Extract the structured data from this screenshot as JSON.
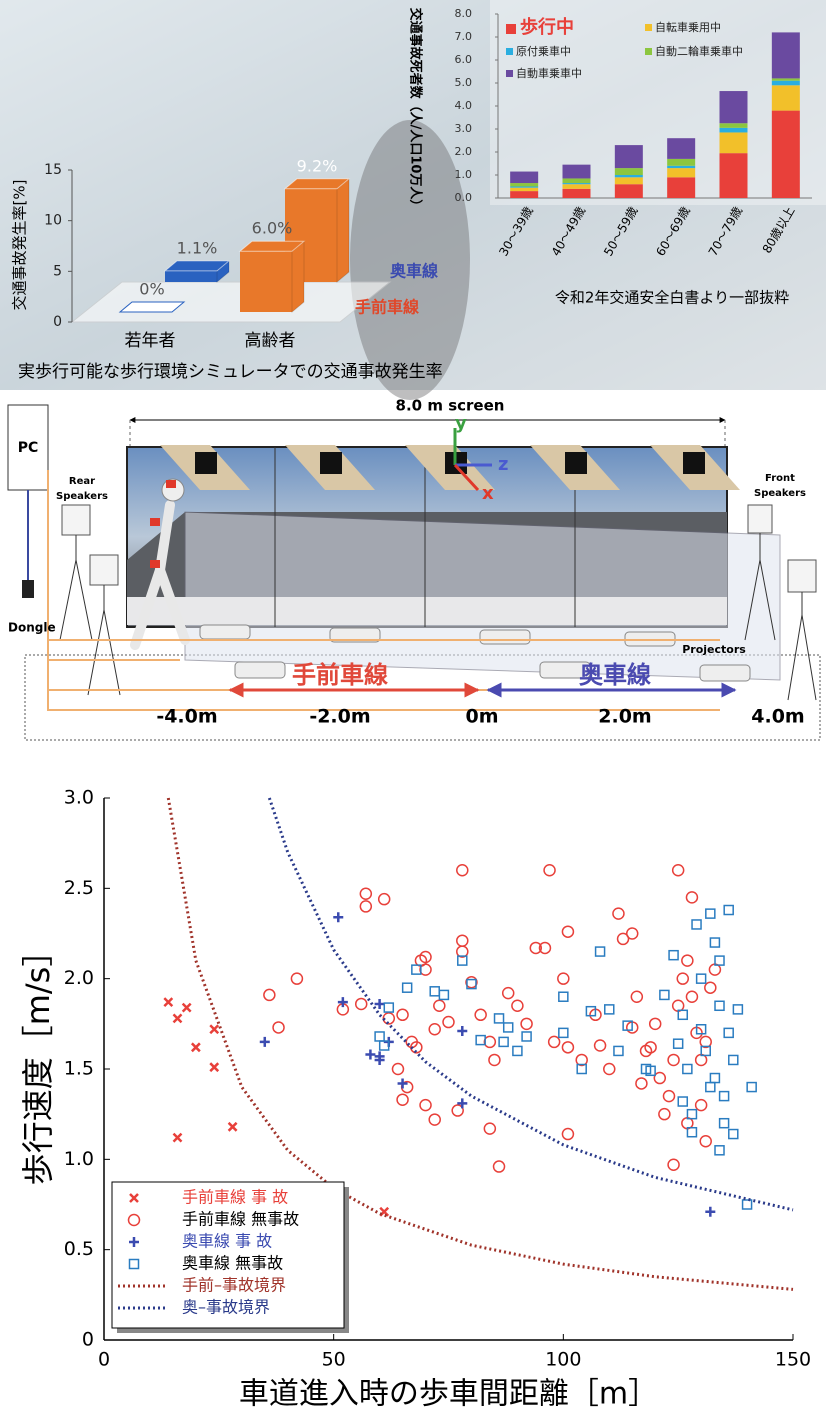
{
  "chart_data": [
    {
      "type": "bar",
      "title": "実歩行可能な歩行環境シミュレータでの交通事故発生率",
      "ylabel": "交通事故発生率[%]",
      "categories": [
        "若年者",
        "高齢者"
      ],
      "series": [
        {
          "name": "奥車線",
          "color": "#3b4bb0",
          "values": [
            1.1,
            9.2
          ],
          "value_labels": [
            "1.1%",
            "9.2%"
          ],
          "bar_colors": [
            "#2a62c0",
            "#e8782a"
          ]
        },
        {
          "name": "手前車線",
          "color": "#e0482a",
          "values": [
            0,
            6.0
          ],
          "value_labels": [
            "0%",
            "6.0%"
          ],
          "bar_colors": [
            "#2a62c0",
            "#e8782a"
          ]
        }
      ],
      "ylim": [
        0,
        15
      ],
      "yticks": [
        0,
        5,
        10,
        15
      ]
    },
    {
      "type": "bar",
      "stacked": true,
      "ylabel": "交通事故死者数（人/人口10万人）",
      "note": "令和2年交通安全白書より一部抜粋",
      "categories": [
        "30～39歳",
        "40～49歳",
        "50～59歳",
        "60～69歳",
        "70～79歳",
        "80歳以上"
      ],
      "series": [
        {
          "name": "歩行中",
          "color": "#e8403a",
          "values": [
            0.3,
            0.4,
            0.6,
            0.9,
            1.95,
            3.8
          ]
        },
        {
          "name": "自転車乗用中",
          "color": "#f2c02a",
          "values": [
            0.15,
            0.2,
            0.3,
            0.4,
            0.9,
            1.1
          ]
        },
        {
          "name": "原付乗車中",
          "color": "#2aaee0",
          "values": [
            0.05,
            0.05,
            0.1,
            0.1,
            0.2,
            0.2
          ]
        },
        {
          "name": "自動二輪車乗車中",
          "color": "#8cc63f",
          "values": [
            0.15,
            0.2,
            0.3,
            0.3,
            0.2,
            0.1
          ]
        },
        {
          "name": "自動車乗車中",
          "color": "#6a4aa0",
          "values": [
            0.5,
            0.6,
            1.0,
            0.9,
            1.4,
            2.0
          ]
        }
      ],
      "ylim": [
        0,
        8
      ],
      "yticks": [
        {
          "value": 0,
          "label": "0.0"
        },
        {
          "value": 1,
          "label": "1.0"
        },
        {
          "value": 2,
          "label": "2.0"
        },
        {
          "value": 3,
          "label": "3.0"
        },
        {
          "value": 4,
          "label": "4.0"
        },
        {
          "value": 5,
          "label": "5.0"
        },
        {
          "value": 6,
          "label": "6.0"
        },
        {
          "value": 7,
          "label": "7.0"
        },
        {
          "value": 8,
          "label": "8.0"
        }
      ]
    },
    {
      "type": "scatter",
      "xlabel": "車道進入時の歩車間距離［m］",
      "ylabel": "歩行速度［m/s］",
      "legend": "lower left",
      "xlim": [
        0,
        150
      ],
      "xticks": [
        0,
        50,
        100,
        150
      ],
      "ylim": [
        0,
        3
      ],
      "yticks": [
        0,
        0.5,
        {
          "value": 1,
          "label": "1.0"
        },
        1.5,
        {
          "value": 2,
          "label": "2.0"
        },
        2.5,
        {
          "value": 3,
          "label": "3.0"
        }
      ],
      "series": [
        {
          "name": "手前車線 事 故",
          "color": "#e8403a",
          "marker": "x",
          "x": [
            14,
            16,
            18,
            16,
            20,
            24,
            24,
            28,
            61
          ],
          "values": [
            1.87,
            1.78,
            1.84,
            1.12,
            1.62,
            1.72,
            1.51,
            1.18,
            0.71
          ]
        },
        {
          "name": "手前車線 無事故",
          "color": "#e8403a",
          "marker": "o",
          "x": [
            57,
            57,
            61,
            42,
            36,
            38,
            52,
            56,
            62,
            65,
            64,
            66,
            65,
            67,
            69,
            70,
            70,
            68,
            72,
            73,
            75,
            70,
            72,
            77,
            78,
            78,
            78,
            80,
            82,
            84,
            85,
            88,
            90,
            92,
            84,
            86,
            94,
            96,
            97,
            98,
            100,
            101,
            101,
            101,
            104,
            107,
            108,
            110,
            112,
            113,
            115,
            116,
            118,
            120,
            121,
            122,
            123,
            124,
            125,
            125,
            126,
            127,
            127,
            128,
            128,
            129,
            130,
            130,
            131,
            131,
            132,
            133,
            124,
            119,
            117,
            115
          ],
          "values": [
            2.47,
            2.4,
            2.44,
            2.0,
            1.91,
            1.73,
            1.83,
            1.86,
            1.78,
            1.8,
            1.5,
            1.4,
            1.33,
            1.65,
            2.1,
            2.12,
            2.05,
            1.62,
            1.72,
            1.85,
            1.76,
            1.3,
            1.22,
            1.27,
            2.21,
            2.15,
            2.6,
            1.98,
            1.8,
            1.65,
            1.55,
            1.92,
            1.85,
            1.75,
            1.17,
            0.96,
            2.17,
            2.17,
            2.6,
            1.65,
            2.0,
            1.62,
            2.26,
            1.14,
            1.55,
            1.8,
            1.63,
            1.5,
            2.36,
            2.22,
            2.25,
            1.9,
            1.6,
            1.75,
            1.45,
            1.25,
            1.35,
            1.55,
            1.85,
            2.6,
            2.0,
            2.1,
            1.2,
            2.45,
            1.9,
            1.7,
            1.55,
            1.3,
            1.1,
            1.65,
            1.95,
            2.05,
            0.97,
            1.62,
            1.42,
            1.73
          ]
        },
        {
          "name": "奥車線 事 故",
          "color": "#3b4bb0",
          "marker": "+",
          "x": [
            51,
            52,
            35,
            58,
            60,
            60,
            62,
            65,
            60,
            78,
            78,
            132
          ],
          "values": [
            2.34,
            1.87,
            1.65,
            1.58,
            1.57,
            1.86,
            1.65,
            1.42,
            1.55,
            1.71,
            1.31,
            0.71
          ]
        },
        {
          "name": "奥車線 無事故",
          "color": "#2a7cc0",
          "marker": "s",
          "x": [
            60,
            61,
            62,
            66,
            68,
            72,
            74,
            78,
            80,
            82,
            86,
            87,
            88,
            90,
            92,
            100,
            100,
            104,
            106,
            108,
            110,
            112,
            114,
            118,
            119,
            122,
            124,
            125,
            126,
            127,
            128,
            129,
            130,
            130,
            131,
            132,
            133,
            133,
            134,
            134,
            135,
            135,
            136,
            136,
            137,
            137,
            138,
            141,
            140,
            134,
            132,
            128,
            126
          ],
          "values": [
            1.68,
            1.63,
            1.84,
            1.95,
            2.05,
            1.93,
            1.91,
            2.1,
            1.97,
            1.66,
            1.78,
            1.65,
            1.73,
            1.6,
            1.68,
            1.7,
            1.9,
            1.5,
            1.82,
            2.15,
            1.83,
            1.6,
            1.74,
            1.5,
            1.49,
            1.91,
            2.13,
            1.64,
            1.8,
            1.5,
            1.25,
            2.3,
            2.0,
            1.72,
            1.6,
            2.36,
            2.2,
            1.45,
            2.1,
            1.85,
            1.35,
            1.2,
            2.38,
            1.7,
            1.55,
            1.14,
            1.83,
            1.4,
            0.75,
            1.05,
            1.4,
            1.15,
            1.32
          ]
        },
        {
          "name": "手前–事故境界",
          "color": "#a0332a",
          "style": "dotted",
          "x": [
            14,
            20,
            30,
            40,
            50,
            60,
            80,
            100,
            120,
            150
          ],
          "values": [
            3.0,
            2.1,
            1.4,
            1.05,
            0.84,
            0.7,
            0.525,
            0.42,
            0.35,
            0.28
          ]
        },
        {
          "name": "奥–事故境界",
          "color": "#2a3a8a",
          "style": "dotted",
          "x": [
            36,
            40,
            50,
            60,
            70,
            80,
            100,
            120,
            150
          ],
          "values": [
            3.0,
            2.7,
            2.16,
            1.8,
            1.54,
            1.35,
            1.08,
            0.9,
            0.72
          ]
        }
      ]
    }
  ],
  "diagram": {
    "screen_label": "8.0 m screen",
    "pc": "PC",
    "rear_speakers": [
      "Rear",
      "Speakers"
    ],
    "dongle": "Dongle",
    "front_speakers": [
      "Front",
      "Speakers"
    ],
    "projectors": "Projectors",
    "near_lane": "手前車線",
    "far_lane": "奥車線",
    "axis_y": "y",
    "axis_z": "z",
    "axis_x": "x",
    "positions": [
      "-4.0m",
      "-2.0m",
      "0m",
      "2.0m",
      "4.0m"
    ]
  }
}
